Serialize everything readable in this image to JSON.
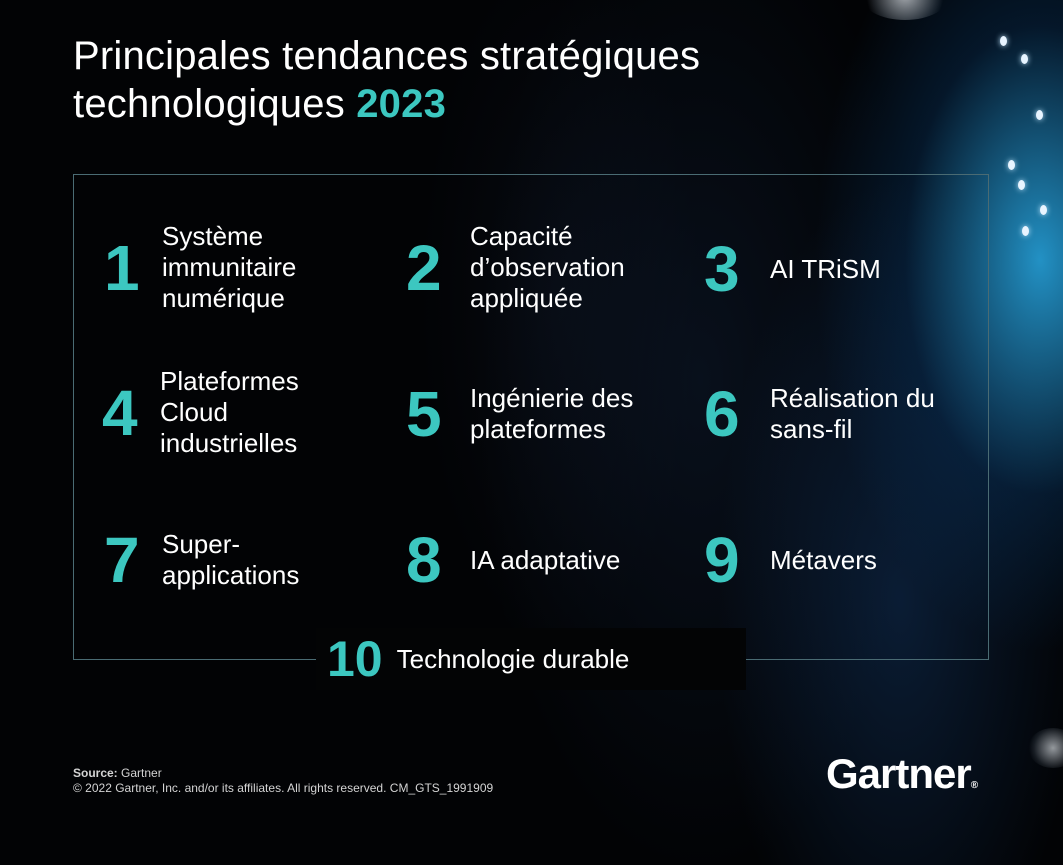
{
  "title": {
    "line1": "Principales tendances stratégiques",
    "line2_prefix": "technologiques",
    "year": "2023"
  },
  "trends": [
    {
      "number": "1",
      "label": "Système\nimmunitaire\nnumérique"
    },
    {
      "number": "2",
      "label": "Capacité\nd’observation\nappliquée"
    },
    {
      "number": "3",
      "label": "AI TRiSM"
    },
    {
      "number": "4",
      "label": "Plateformes\nCloud\nindustrielles"
    },
    {
      "number": "5",
      "label": "Ingénierie des\nplateformes"
    },
    {
      "number": "6",
      "label": "Réalisation du\nsans-fil"
    },
    {
      "number": "7",
      "label": "Super-\napplications"
    },
    {
      "number": "8",
      "label": "IA adaptative"
    },
    {
      "number": "9",
      "label": "Métavers"
    },
    {
      "number": "10",
      "label": "Technologie durable"
    }
  ],
  "footer": {
    "source_label": "Source:",
    "source_value": "Gartner",
    "copyright": "© 2022 Gartner, Inc. and/or its affiliates. All rights reserved. CM_GTS_1991909",
    "logo": "Gartner",
    "logo_mark": "®"
  },
  "colors": {
    "accent": "#3cc7c0",
    "background": "#000000",
    "text": "#ffffff",
    "frame": "#4a6b73"
  }
}
